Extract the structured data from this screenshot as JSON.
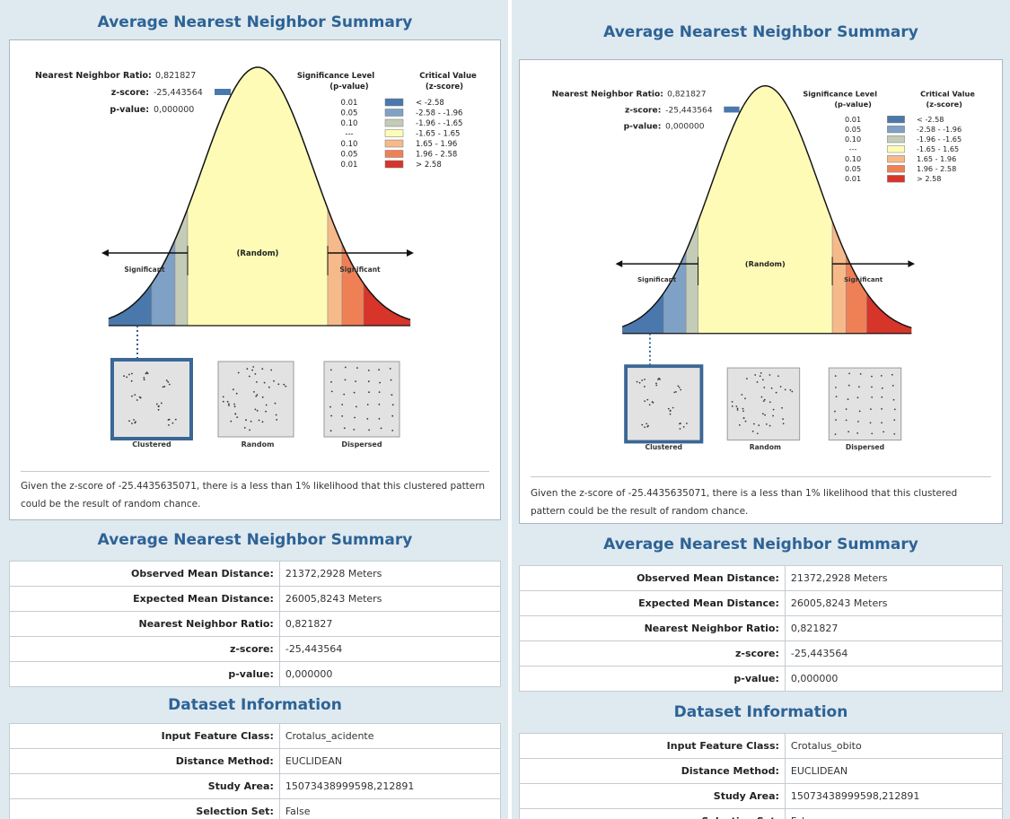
{
  "reports": [
    {
      "title": "Average Nearest Neighbor Summary",
      "chart": {
        "ratio_label": "Nearest Neighbor Ratio:",
        "ratio_value": "0,821827",
        "z_label": "z-score:",
        "z_value": "-25,443564",
        "p_label": "p-value:",
        "p_value": "0,000000",
        "sig_header_1": "Significance Level",
        "sig_header_2": "(p-value)",
        "crit_header_1": "Critical Value",
        "crit_header_2": "(z-score)",
        "legend": [
          {
            "p": "0.01",
            "z": "< -2.58",
            "color": "#4a78ad"
          },
          {
            "p": "0.05",
            "z": "-2.58 - -1.96",
            "color": "#7fa1c6"
          },
          {
            "p": "0.10",
            "z": "-1.96 - -1.65",
            "color": "#c4ccb8"
          },
          {
            "p": "---",
            "z": "-1.65 - 1.65",
            "color": "#fdfbb6"
          },
          {
            "p": "0.10",
            "z": "1.65 - 1.96",
            "color": "#f6b98a"
          },
          {
            "p": "0.05",
            "z": "1.96 - 2.58",
            "color": "#ef8056"
          },
          {
            "p": "0.01",
            "z": "> 2.58",
            "color": "#d7352a"
          }
        ],
        "random_label": "(Random)",
        "left_arrow_label": "Significant",
        "right_arrow_label": "Significant",
        "patterns": [
          "Clustered",
          "Random",
          "Dispersed"
        ],
        "caption": "Given the z-score of -25.4435635071, there is a less than 1% likelihood that this clustered pattern could be the result of random chance."
      },
      "summary_title": "Average Nearest Neighbor Summary",
      "summary_rows": [
        {
          "label": "Observed Mean Distance:",
          "value": "21372,2928 Meters"
        },
        {
          "label": "Expected Mean Distance:",
          "value": "26005,8243 Meters"
        },
        {
          "label": "Nearest Neighbor Ratio:",
          "value": "0,821827"
        },
        {
          "label": "z-score:",
          "value": "-25,443564"
        },
        {
          "label": "p-value:",
          "value": "0,000000"
        }
      ],
      "dataset_title": "Dataset Information",
      "dataset_rows": [
        {
          "label": "Input Feature Class:",
          "value": "Crotalus_acidente"
        },
        {
          "label": "Distance Method:",
          "value": "EUCLIDEAN"
        },
        {
          "label": "Study Area:",
          "value": "15073438999598,212891"
        },
        {
          "label": "Selection Set:",
          "value": "False"
        }
      ]
    },
    {
      "title": "Average Nearest Neighbor Summary",
      "chart": {
        "ratio_label": "Nearest Neighbor Ratio:",
        "ratio_value": "0,821827",
        "z_label": "z-score:",
        "z_value": "-25,443564",
        "p_label": "p-value:",
        "p_value": "0,000000",
        "sig_header_1": "Significance Level",
        "sig_header_2": "(p-value)",
        "crit_header_1": "Critical Value",
        "crit_header_2": "(z-score)",
        "legend": [
          {
            "p": "0.01",
            "z": "< -2.58",
            "color": "#4a78ad"
          },
          {
            "p": "0.05",
            "z": "-2.58 - -1.96",
            "color": "#7fa1c6"
          },
          {
            "p": "0.10",
            "z": "-1.96 - -1.65",
            "color": "#c4ccb8"
          },
          {
            "p": "---",
            "z": "-1.65 - 1.65",
            "color": "#fdfbb6"
          },
          {
            "p": "0.10",
            "z": "1.65 - 1.96",
            "color": "#f6b98a"
          },
          {
            "p": "0.05",
            "z": "1.96 - 2.58",
            "color": "#ef8056"
          },
          {
            "p": "0.01",
            "z": "> 2.58",
            "color": "#d7352a"
          }
        ],
        "random_label": "(Random)",
        "left_arrow_label": "Significant",
        "right_arrow_label": "Significant",
        "patterns": [
          "Clustered",
          "Random",
          "Dispersed"
        ],
        "caption": "Given the z-score of -25.4435635071, there is a less than 1% likelihood that this clustered pattern could be the result of random chance."
      },
      "summary_title": "Average Nearest Neighbor Summary",
      "summary_rows": [
        {
          "label": "Observed Mean Distance:",
          "value": "21372,2928 Meters"
        },
        {
          "label": "Expected Mean Distance:",
          "value": "26005,8243 Meters"
        },
        {
          "label": "Nearest Neighbor Ratio:",
          "value": "0,821827"
        },
        {
          "label": "z-score:",
          "value": "-25,443564"
        },
        {
          "label": "p-value:",
          "value": "0,000000"
        }
      ],
      "dataset_title": "Dataset Information",
      "dataset_rows": [
        {
          "label": "Input Feature Class:",
          "value": "Crotalus_obito"
        },
        {
          "label": "Distance Method:",
          "value": "EUCLIDEAN"
        },
        {
          "label": "Study Area:",
          "value": "15073438999598,212891"
        },
        {
          "label": "Selection Set:",
          "value": "False"
        }
      ]
    }
  ]
}
